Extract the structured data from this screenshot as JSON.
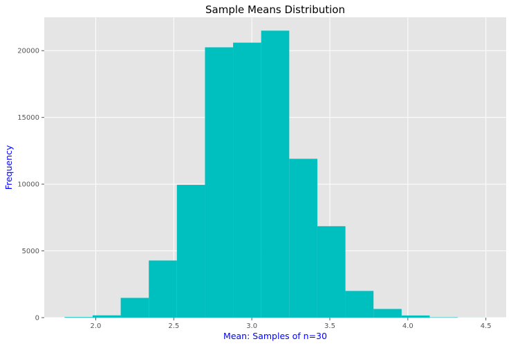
{
  "chart_data": {
    "type": "bar",
    "title": "Sample Means Distribution",
    "xlabel": "Mean: Samples of n=30",
    "ylabel": "Frequency",
    "xlim": [
      1.67,
      4.63
    ],
    "ylim": [
      0,
      22500
    ],
    "x_ticks": [
      2.0,
      2.5,
      3.0,
      3.5,
      4.0,
      4.5
    ],
    "x_tick_labels": [
      "2.0",
      "2.5",
      "3.0",
      "3.5",
      "4.0",
      "4.5"
    ],
    "y_ticks": [
      0,
      5000,
      10000,
      15000,
      20000
    ],
    "y_tick_labels": [
      "0",
      "5000",
      "10000",
      "15000",
      "20000"
    ],
    "grid": true,
    "bar_color": "#00bfbf",
    "axes_bg": "#e5e5e5",
    "label_color": "#0000ff",
    "bins": [
      {
        "x0": 1.8,
        "x1": 1.98,
        "value": 40
      },
      {
        "x0": 1.98,
        "x1": 2.16,
        "value": 170
      },
      {
        "x0": 2.16,
        "x1": 2.34,
        "value": 1480
      },
      {
        "x0": 2.34,
        "x1": 2.52,
        "value": 4280
      },
      {
        "x0": 2.52,
        "x1": 2.7,
        "value": 9950
      },
      {
        "x0": 2.7,
        "x1": 2.88,
        "value": 20250
      },
      {
        "x0": 2.88,
        "x1": 3.06,
        "value": 20600
      },
      {
        "x0": 3.06,
        "x1": 3.24,
        "value": 21500
      },
      {
        "x0": 3.24,
        "x1": 3.42,
        "value": 11900
      },
      {
        "x0": 3.42,
        "x1": 3.6,
        "value": 6850
      },
      {
        "x0": 3.6,
        "x1": 3.78,
        "value": 2000
      },
      {
        "x0": 3.78,
        "x1": 3.96,
        "value": 650
      },
      {
        "x0": 3.96,
        "x1": 4.14,
        "value": 160
      },
      {
        "x0": 4.14,
        "x1": 4.32,
        "value": 25
      },
      {
        "x0": 4.32,
        "x1": 4.5,
        "value": 3
      }
    ]
  }
}
